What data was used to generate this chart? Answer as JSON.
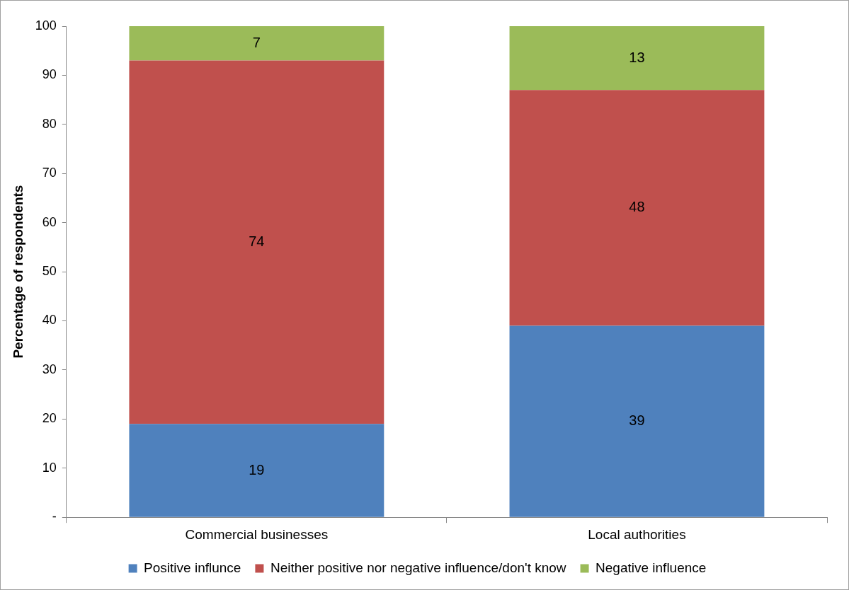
{
  "chart_data": {
    "type": "bar",
    "stacked": true,
    "ylabel": "Percentage of respondents",
    "categories": [
      "Commercial businesses",
      "Local authorities"
    ],
    "series": [
      {
        "name": "Positive influnce",
        "color": "#4f81bd",
        "values": [
          19,
          39
        ]
      },
      {
        "name": "Neither positive nor negative influence/don't know",
        "color": "#c0504d",
        "values": [
          74,
          48
        ]
      },
      {
        "name": "Negative influence",
        "color": "#9bbb59",
        "values": [
          7,
          13
        ]
      }
    ],
    "ylim": [
      0,
      100
    ],
    "yticks": [
      {
        "value": 0,
        "label": "-"
      },
      10,
      20,
      30,
      40,
      50,
      60,
      70,
      80,
      90,
      100
    ],
    "data_labels": true,
    "grid": false,
    "legend": "bottom"
  }
}
